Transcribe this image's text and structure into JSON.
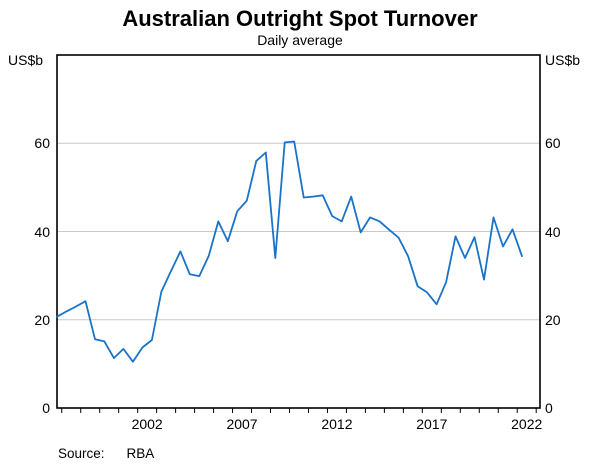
{
  "header": {
    "title": "Australian Outright Spot Turnover",
    "subtitle": "Daily average"
  },
  "axes": {
    "unit_left": "US$b",
    "unit_right": "US$b"
  },
  "source": {
    "label": "Source:",
    "value": "RBA"
  },
  "chart_data": {
    "type": "line",
    "title": "Australian Outright Spot Turnover",
    "subtitle": "Daily average",
    "ylabel_left": "US$b",
    "ylabel_right": "US$b",
    "source": "RBA",
    "frequency": "semiannual",
    "grid": "horizontal",
    "legend": "none",
    "line_color": "#1973c8",
    "grid_color": "#c9c9c9",
    "frame_color": "#000000",
    "xlim": [
      1997.75,
      2023.2
    ],
    "ylim": [
      0,
      80
    ],
    "y_ticks": [
      0,
      20,
      40,
      60
    ],
    "x_ticks": [
      1998,
      1999,
      2000,
      2001,
      2002,
      2003,
      2004,
      2005,
      2006,
      2007,
      2008,
      2009,
      2010,
      2011,
      2012,
      2013,
      2014,
      2015,
      2016,
      2017,
      2018,
      2019,
      2020,
      2021,
      2022,
      2023
    ],
    "x_tick_labels": [
      "2002",
      "2007",
      "2012",
      "2017",
      "2022"
    ],
    "x": [
      1997.75,
      1998.25,
      1998.75,
      1999.25,
      1999.75,
      2000.25,
      2000.75,
      2001.25,
      2001.75,
      2002.25,
      2002.75,
      2003.25,
      2003.75,
      2004.25,
      2004.75,
      2005.25,
      2005.75,
      2006.25,
      2006.75,
      2007.25,
      2007.75,
      2008.25,
      2008.75,
      2009.25,
      2009.75,
      2010.25,
      2010.75,
      2011.25,
      2011.75,
      2012.25,
      2012.75,
      2013.25,
      2013.75,
      2014.25,
      2014.75,
      2015.25,
      2015.75,
      2016.25,
      2016.75,
      2017.25,
      2017.75,
      2018.25,
      2018.75,
      2019.25,
      2019.75,
      2020.25,
      2020.75,
      2021.25,
      2021.75,
      2022.25
    ],
    "values": [
      20.7,
      21.9,
      23.0,
      24.2,
      15.6,
      15.1,
      11.3,
      13.4,
      10.5,
      13.7,
      15.4,
      26.4,
      31.0,
      35.5,
      30.3,
      29.9,
      34.5,
      42.3,
      37.8,
      44.6,
      47.0,
      56.0,
      57.9,
      34.0,
      60.2,
      60.4,
      47.7,
      47.9,
      48.2,
      43.5,
      42.3,
      47.9,
      39.8,
      43.2,
      42.3,
      40.4,
      38.6,
      34.4,
      27.6,
      26.2,
      23.5,
      28.5,
      38.9,
      34.0,
      38.7,
      29.1,
      43.2,
      36.6,
      40.5,
      34.4
    ]
  }
}
